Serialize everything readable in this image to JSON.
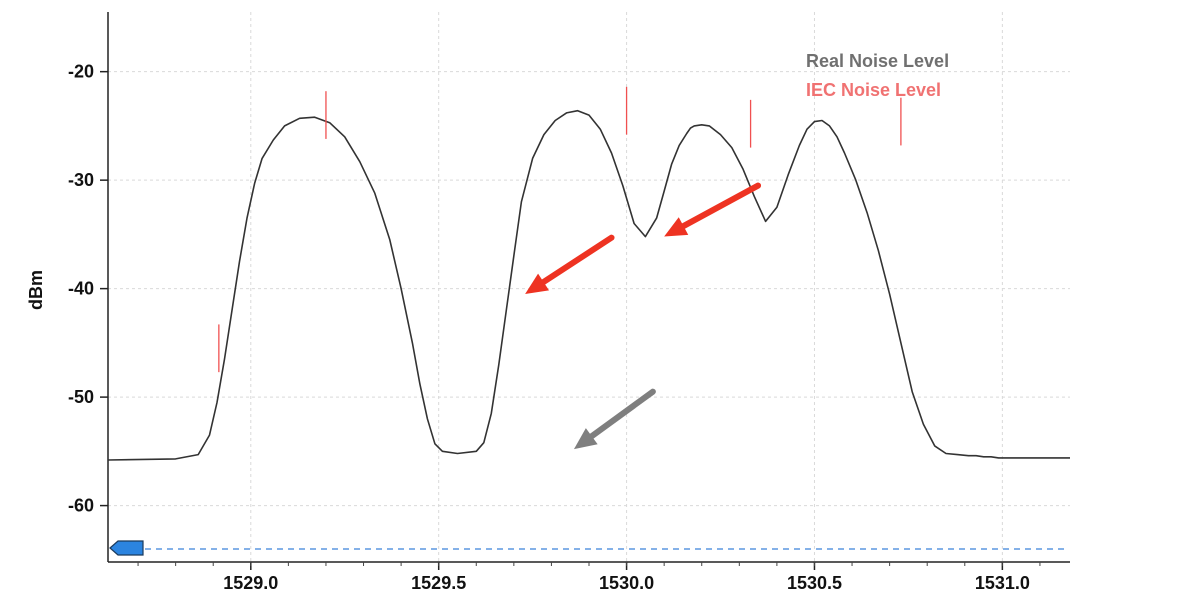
{
  "chart_data": {
    "type": "line",
    "title": "",
    "xlabel": "",
    "ylabel": "dBm",
    "xlim": [
      1528.62,
      1531.18
    ],
    "ylim": [
      -65.2,
      -14.5
    ],
    "grid": true,
    "x_ticks": [
      1529.0,
      1529.5,
      1530.0,
      1530.5,
      1531.0
    ],
    "x_tick_labels": [
      "1529.0",
      "1529.5",
      "1530.0",
      "1530.5",
      "1531.0"
    ],
    "y_ticks": [
      -20,
      -30,
      -40,
      -50,
      -60
    ],
    "y_tick_labels": [
      "-20",
      "-30",
      "-40",
      "-50",
      "-60"
    ],
    "legend": [
      {
        "label": "Real Noise Level",
        "color": "#707070"
      },
      {
        "label": "IEC Noise Level",
        "color": "#f07272"
      }
    ],
    "legend_position": "top-right",
    "series": [
      {
        "color": "#333333",
        "x": [
          1528.62,
          1528.8,
          1528.86,
          1528.89,
          1528.91,
          1528.93,
          1528.95,
          1528.97,
          1528.99,
          1529.01,
          1529.03,
          1529.06,
          1529.09,
          1529.13,
          1529.17,
          1529.21,
          1529.25,
          1529.29,
          1529.33,
          1529.37,
          1529.4,
          1529.43,
          1529.45,
          1529.47,
          1529.49,
          1529.51,
          1529.55,
          1529.6,
          1529.62,
          1529.64,
          1529.66,
          1529.68,
          1529.7,
          1529.72,
          1529.75,
          1529.78,
          1529.81,
          1529.84,
          1529.87,
          1529.9,
          1529.93,
          1529.96,
          1529.99,
          1530.02,
          1530.05,
          1530.08,
          1530.1,
          1530.12,
          1530.14,
          1530.16,
          1530.17,
          1530.18,
          1530.2,
          1530.22,
          1530.25,
          1530.28,
          1530.31,
          1530.34,
          1530.37,
          1530.4,
          1530.43,
          1530.46,
          1530.48,
          1530.5,
          1530.52,
          1530.54,
          1530.56,
          1530.58,
          1530.61,
          1530.64,
          1530.67,
          1530.7,
          1530.73,
          1530.76,
          1530.79,
          1530.82,
          1530.85,
          1530.88,
          1530.91,
          1530.93,
          1530.95,
          1530.97,
          1530.99,
          1531.01,
          1531.03,
          1531.05,
          1531.1,
          1531.18
        ],
        "y": [
          -55.8,
          -55.7,
          -55.3,
          -53.5,
          -50.5,
          -46.5,
          -42.0,
          -37.5,
          -33.5,
          -30.3,
          -28.0,
          -26.3,
          -25.0,
          -24.3,
          -24.2,
          -24.7,
          -26.0,
          -28.3,
          -31.2,
          -35.5,
          -40.0,
          -45.0,
          -48.8,
          -52.0,
          -54.3,
          -55.0,
          -55.2,
          -55.0,
          -54.2,
          -51.5,
          -47.0,
          -42.0,
          -37.0,
          -32.0,
          -28.0,
          -25.8,
          -24.5,
          -23.8,
          -23.6,
          -24.0,
          -25.3,
          -27.5,
          -30.5,
          -34.0,
          -35.2,
          -33.5,
          -31.0,
          -28.5,
          -26.8,
          -25.7,
          -25.2,
          -25.0,
          -24.9,
          -25.0,
          -25.8,
          -27.0,
          -29.0,
          -31.5,
          -33.8,
          -32.5,
          -29.5,
          -26.8,
          -25.3,
          -24.6,
          -24.5,
          -25.0,
          -26.0,
          -27.5,
          -30.0,
          -33.0,
          -36.5,
          -40.5,
          -45.0,
          -49.5,
          -52.5,
          -54.5,
          -55.2,
          -55.3,
          -55.4,
          -55.4,
          -55.5,
          -55.5,
          -55.6,
          -55.6,
          -55.6,
          -55.6,
          -55.6,
          -55.6
        ]
      }
    ],
    "markers": {
      "color": "#f05050",
      "x": [
        1528.915,
        1529.2,
        1530.0,
        1530.33,
        1530.73
      ],
      "y_center": [
        -45.5,
        -24.0,
        -23.6,
        -24.8,
        -24.6
      ],
      "half_length": 2.2
    },
    "reference_line": {
      "y": -64.0,
      "color": "#3b82d9",
      "style": "dashed"
    },
    "annotations": [
      {
        "type": "arrow",
        "color": "#ee3322",
        "from": [
          1530.35,
          -30.5
        ],
        "to": [
          1530.1,
          -35.2
        ]
      },
      {
        "type": "arrow",
        "color": "#ee3322",
        "from": [
          1529.96,
          -35.3
        ],
        "to": [
          1529.73,
          -40.5
        ]
      },
      {
        "type": "arrow",
        "color": "#7f7f7f",
        "from": [
          1530.07,
          -49.5
        ],
        "to": [
          1529.86,
          -54.8
        ]
      }
    ]
  }
}
